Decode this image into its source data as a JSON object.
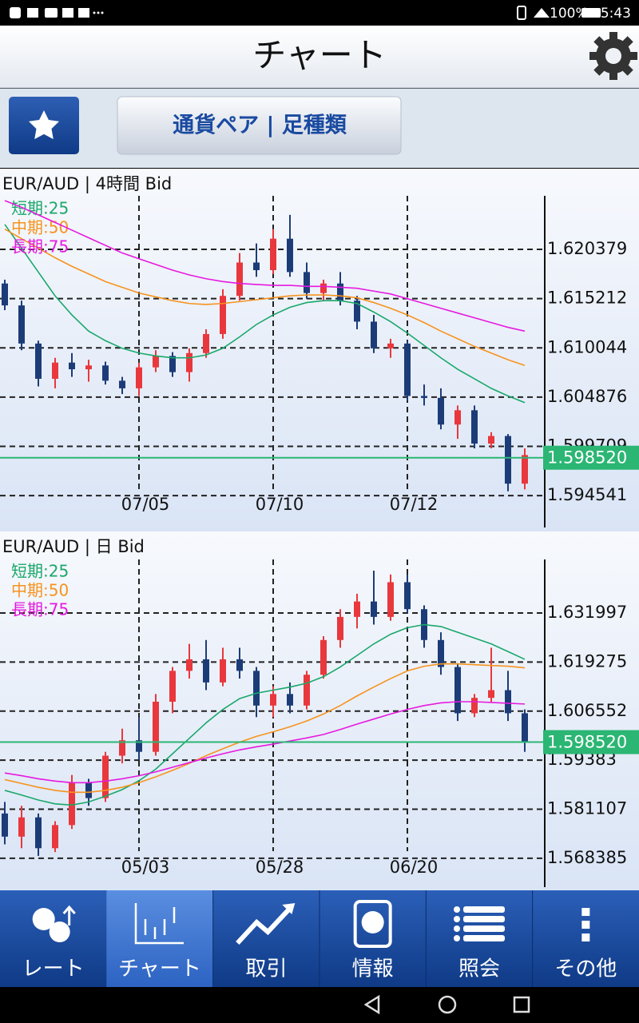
{
  "status_bar": {
    "battery": "100%",
    "time": "5:43"
  },
  "header": {
    "title": "チャート"
  },
  "toolbar": {
    "pair_button": "通貨ペア | 足種類"
  },
  "chart_data": [
    {
      "type": "candlestick",
      "title": "EUR/AUD | 4時間 Bid",
      "categories": [
        null,
        null,
        null,
        null,
        null,
        null,
        null,
        null,
        "07/05",
        null,
        null,
        null,
        null,
        null,
        null,
        null,
        "07/10",
        null,
        null,
        null,
        null,
        null,
        null,
        null,
        "07/12",
        null,
        null,
        null,
        null,
        null,
        null,
        null
      ],
      "open": [
        1.6168,
        1.6145,
        1.6105,
        1.6068,
        1.6085,
        1.6078,
        1.6082,
        1.6066,
        1.6058,
        1.608,
        1.6092,
        1.6075,
        1.6095,
        1.6115,
        1.6155,
        1.619,
        1.6182,
        1.6215,
        1.618,
        1.6158,
        1.6168,
        1.615,
        1.6128,
        1.61,
        1.6105,
        1.605,
        1.6048,
        1.602,
        1.6035,
        1.6,
        1.6008,
        1.5958
      ],
      "high": [
        1.6172,
        1.615,
        1.6108,
        1.609,
        1.6095,
        1.6088,
        1.6086,
        1.607,
        1.6085,
        1.6098,
        1.6096,
        1.61,
        1.612,
        1.6162,
        1.62,
        1.621,
        1.6225,
        1.624,
        1.619,
        1.6172,
        1.618,
        1.6155,
        1.6135,
        1.611,
        1.6108,
        1.6062,
        1.6058,
        1.604,
        1.604,
        1.6012,
        1.601,
        1.5995
      ],
      "low": [
        1.614,
        1.6098,
        1.606,
        1.6058,
        1.607,
        1.6065,
        1.6062,
        1.6052,
        1.605,
        1.6075,
        1.607,
        1.6065,
        1.609,
        1.611,
        1.615,
        1.6175,
        1.6178,
        1.6175,
        1.6152,
        1.615,
        1.6145,
        1.612,
        1.6095,
        1.609,
        1.6045,
        1.604,
        1.6015,
        1.6005,
        1.5995,
        1.5995,
        1.595,
        1.5952
      ],
      "close": [
        1.6145,
        1.6105,
        1.6068,
        1.6085,
        1.6078,
        1.6082,
        1.6066,
        1.6058,
        1.608,
        1.6092,
        1.6075,
        1.6095,
        1.6115,
        1.6155,
        1.619,
        1.6182,
        1.6215,
        1.618,
        1.6158,
        1.6168,
        1.615,
        1.6128,
        1.61,
        1.6105,
        1.605,
        1.6048,
        1.602,
        1.6035,
        1.6,
        1.6008,
        1.5958,
        1.5988
      ],
      "up_color": "#e8383d",
      "down_color": "#1c3c78",
      "series": [
        {
          "name": "短期:25",
          "color": "#1aa86a",
          "values": [
            1.623,
            1.6205,
            1.618,
            1.6155,
            1.6135,
            1.6118,
            1.6108,
            1.61,
            1.6095,
            1.6092,
            1.609,
            1.609,
            1.6093,
            1.61,
            1.6112,
            1.6125,
            1.6135,
            1.6143,
            1.6148,
            1.615,
            1.615,
            1.6147,
            1.6138,
            1.6128,
            1.6116,
            1.6103,
            1.609,
            1.6078,
            1.6068,
            1.6058,
            1.605,
            1.6043
          ]
        },
        {
          "name": "中期:50",
          "color": "#f7931e",
          "values": [
            1.6225,
            1.6215,
            1.6205,
            1.6195,
            1.6186,
            1.6178,
            1.617,
            1.6164,
            1.6158,
            1.6154,
            1.615,
            1.6147,
            1.6146,
            1.6147,
            1.6149,
            1.6151,
            1.6153,
            1.6155,
            1.6156,
            1.6156,
            1.6155,
            1.6153,
            1.6148,
            1.6142,
            1.6135,
            1.6127,
            1.6118,
            1.611,
            1.6102,
            1.6095,
            1.6088,
            1.6082
          ]
        },
        {
          "name": "長期:75",
          "color": "#e61adf",
          "values": [
            1.6255,
            1.6248,
            1.624,
            1.6232,
            1.6224,
            1.6216,
            1.6208,
            1.62,
            1.6194,
            1.6188,
            1.6182,
            1.6177,
            1.6173,
            1.617,
            1.6168,
            1.6167,
            1.6166,
            1.6166,
            1.6165,
            1.6165,
            1.6164,
            1.6163,
            1.616,
            1.6157,
            1.6152,
            1.6147,
            1.6142,
            1.6137,
            1.6132,
            1.6127,
            1.6122,
            1.6118
          ]
        }
      ],
      "ylim": [
        1.5912,
        1.626
      ],
      "yticks": [
        1.620379,
        1.615212,
        1.610044,
        1.604876,
        1.599709,
        1.594541
      ],
      "current_price": {
        "value": 1.59852,
        "label": "1.598520"
      },
      "current_color": "#2bb673"
    },
    {
      "type": "candlestick",
      "title": "EUR/AUD | 日 Bid",
      "categories": [
        null,
        null,
        null,
        null,
        null,
        null,
        null,
        null,
        "05/03",
        null,
        null,
        null,
        null,
        null,
        null,
        null,
        "05/28",
        null,
        null,
        null,
        null,
        null,
        null,
        null,
        "06/20",
        null,
        null,
        null,
        null,
        null,
        null,
        null
      ],
      "open": [
        1.58,
        1.574,
        1.579,
        1.571,
        1.577,
        1.588,
        1.584,
        1.595,
        1.599,
        1.596,
        1.609,
        1.617,
        1.62,
        1.614,
        1.62,
        1.617,
        1.608,
        1.611,
        1.608,
        1.616,
        1.625,
        1.631,
        1.635,
        1.631,
        1.64,
        1.633,
        1.625,
        1.618,
        1.606,
        1.61,
        1.612,
        1.606
      ],
      "high": [
        1.583,
        1.582,
        1.58,
        1.578,
        1.59,
        1.589,
        1.596,
        1.602,
        1.605,
        1.611,
        1.618,
        1.624,
        1.625,
        1.623,
        1.623,
        1.618,
        1.613,
        1.614,
        1.617,
        1.626,
        1.633,
        1.637,
        1.643,
        1.642,
        1.642,
        1.634,
        1.627,
        1.619,
        1.611,
        1.623,
        1.617,
        1.607
      ],
      "low": [
        1.572,
        1.571,
        1.569,
        1.57,
        1.576,
        1.582,
        1.583,
        1.593,
        1.594,
        1.595,
        1.606,
        1.615,
        1.612,
        1.613,
        1.615,
        1.605,
        1.605,
        1.606,
        1.607,
        1.615,
        1.623,
        1.628,
        1.629,
        1.63,
        1.632,
        1.623,
        1.616,
        1.604,
        1.605,
        1.609,
        1.604,
        1.596
      ],
      "close": [
        1.574,
        1.579,
        1.571,
        1.577,
        1.588,
        1.584,
        1.595,
        1.599,
        1.596,
        1.609,
        1.617,
        1.62,
        1.614,
        1.62,
        1.617,
        1.608,
        1.611,
        1.608,
        1.616,
        1.625,
        1.631,
        1.635,
        1.631,
        1.64,
        1.633,
        1.625,
        1.618,
        1.606,
        1.61,
        1.612,
        1.606,
        1.5985
      ],
      "up_color": "#e8383d",
      "down_color": "#1c3c78",
      "series": [
        {
          "name": "短期:25",
          "color": "#1aa86a",
          "values": [
            1.586,
            1.5848,
            1.5835,
            1.5825,
            1.5822,
            1.583,
            1.5845,
            1.5862,
            1.5885,
            1.5915,
            1.5955,
            1.5995,
            1.6035,
            1.607,
            1.6098,
            1.6112,
            1.612,
            1.6128,
            1.6138,
            1.6155,
            1.618,
            1.621,
            1.624,
            1.6265,
            1.6282,
            1.629,
            1.6285,
            1.627,
            1.6255,
            1.624,
            1.622,
            1.62
          ]
        },
        {
          "name": "中期:50",
          "color": "#f7931e",
          "values": [
            1.5888,
            1.5878,
            1.5868,
            1.586,
            1.5855,
            1.5855,
            1.586,
            1.5868,
            1.588,
            1.5895,
            1.5912,
            1.593,
            1.595,
            1.5968,
            1.5985,
            1.6,
            1.6012,
            1.6025,
            1.604,
            1.6058,
            1.608,
            1.6105,
            1.6128,
            1.615,
            1.617,
            1.6182,
            1.6188,
            1.6188,
            1.6186,
            1.6184,
            1.6182,
            1.6178
          ]
        },
        {
          "name": "長期:75",
          "color": "#e61adf",
          "values": [
            1.5905,
            1.5898,
            1.589,
            1.5884,
            1.588,
            1.588,
            1.5884,
            1.589,
            1.5898,
            1.5908,
            1.592,
            1.5932,
            1.5944,
            1.5955,
            1.5965,
            1.5973,
            1.598,
            1.5988,
            1.5996,
            1.6005,
            1.6018,
            1.6032,
            1.6045,
            1.6058,
            1.607,
            1.608,
            1.6087,
            1.609,
            1.609,
            1.6088,
            1.6086,
            1.6084
          ]
        }
      ],
      "ylim": [
        1.5609,
        1.6459
      ],
      "yticks": [
        1.631997,
        1.619275,
        1.606552,
        1.59383,
        1.581107,
        1.568385
      ],
      "current_price": {
        "value": 1.59852,
        "label": "1.598520"
      },
      "current_color": "#2bb673"
    }
  ],
  "nav": {
    "items": [
      "レート",
      "チャート",
      "取引",
      "情報",
      "照会",
      "その他"
    ],
    "active": 1
  }
}
